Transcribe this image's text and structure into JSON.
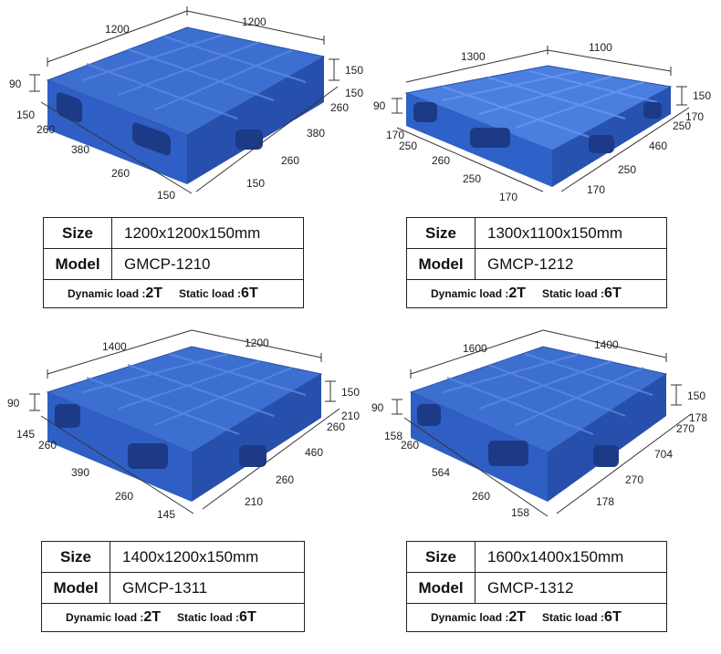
{
  "pallets": [
    {
      "size_label": "Size",
      "size_value": "1200x1200x150mm",
      "model_label": "Model",
      "model_value": "GMCP-1210",
      "dynamic_label": "Dynamic load :",
      "dynamic_value": "2T",
      "static_label": "Static load :",
      "static_value": "6T",
      "dims": {
        "top_left": "1200",
        "top_right": "1200",
        "height_left": "90",
        "height_right": "150",
        "front": [
          "150",
          "260",
          "380",
          "260",
          "150"
        ],
        "side": [
          "150",
          "260",
          "380",
          "260",
          "150"
        ]
      }
    },
    {
      "size_label": "Size",
      "size_value": "1300x1100x150mm",
      "model_label": "Model",
      "model_value": "GMCP-1212",
      "dynamic_label": "Dynamic load :",
      "dynamic_value": "2T",
      "static_label": "Static load :",
      "static_value": "6T",
      "dims": {
        "top_left": "1300",
        "top_right": "1100",
        "height_left": "90",
        "height_right": "150",
        "front": [
          "170",
          "250",
          "260",
          "250",
          "170"
        ],
        "side": [
          "170",
          "250",
          "460",
          "250",
          "170"
        ]
      }
    },
    {
      "size_label": "Size",
      "size_value": "1400x1200x150mm",
      "model_label": "Model",
      "model_value": "GMCP-1311",
      "dynamic_label": "Dynamic load :",
      "dynamic_value": "2T",
      "static_label": "Static load :",
      "static_value": "6T",
      "dims": {
        "top_left": "1400",
        "top_right": "1200",
        "height_left": "90",
        "height_right": "150",
        "front": [
          "145",
          "260",
          "390",
          "260",
          "145"
        ],
        "side": [
          "210",
          "260",
          "460",
          "260",
          "210"
        ]
      }
    },
    {
      "size_label": "Size",
      "size_value": "1600x1400x150mm",
      "model_label": "Model",
      "model_value": "GMCP-1312",
      "dynamic_label": "Dynamic load :",
      "dynamic_value": "2T",
      "static_label": "Static load :",
      "static_value": "6T",
      "dims": {
        "top_left": "1600",
        "top_right": "1400",
        "height_left": "90",
        "height_right": "150",
        "front": [
          "158",
          "260",
          "564",
          "260",
          "158"
        ],
        "side": [
          "178",
          "270",
          "704",
          "270",
          "178"
        ]
      }
    }
  ]
}
